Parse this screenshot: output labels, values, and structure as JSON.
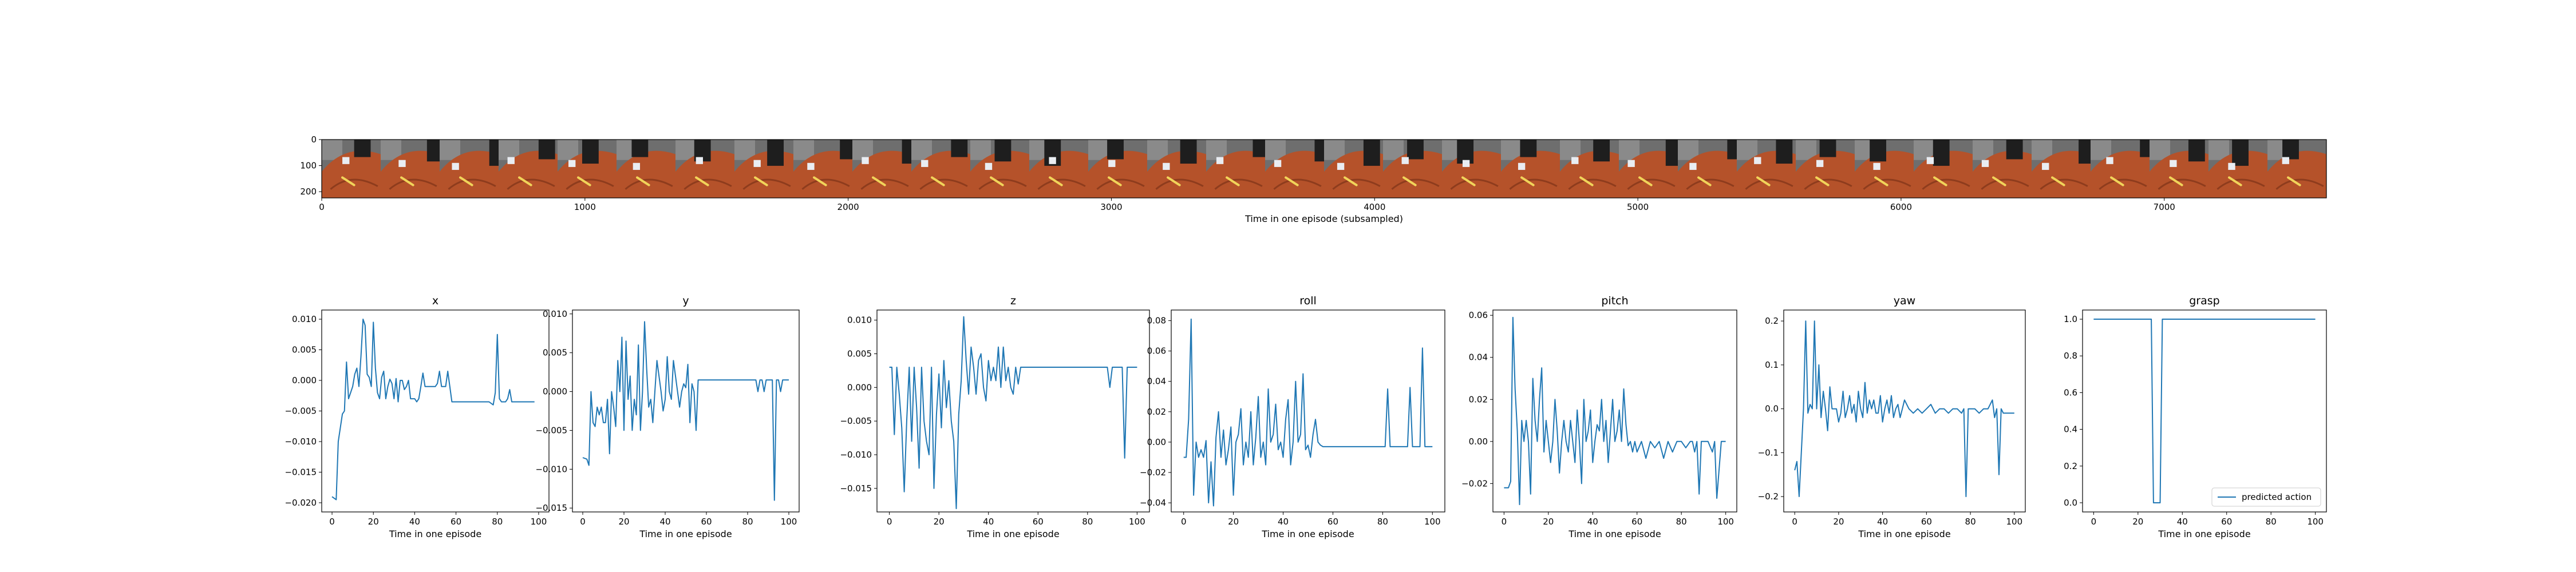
{
  "figure": {
    "filmstrip": {
      "xlabel": "Time in one episode (subsampled)",
      "x_ticks": [
        0,
        1000,
        2000,
        3000,
        4000,
        5000,
        6000,
        7000
      ],
      "y_ticks": [
        0,
        100,
        200
      ],
      "xlim": [
        0,
        7616
      ],
      "ylim": [
        224,
        0
      ],
      "frame_count": 34,
      "frame_width": 224,
      "legend": ""
    }
  },
  "colors": {
    "line": "#1f77b4",
    "frame_background": "#6e6e6e",
    "frame_object": "#b5522a",
    "gripper": "#1e1e1e",
    "marker": "#f1d45a",
    "cube": "#e9edf2"
  },
  "chart_data": [
    {
      "type": "line",
      "title": "x",
      "xlabel": "Time in one episode",
      "ylabel": "",
      "xlim": [
        -5,
        105
      ],
      "ylim": [
        -0.0215,
        0.0115
      ],
      "x_ticks": [
        0,
        20,
        40,
        60,
        80,
        100
      ],
      "y_ticks": [
        -0.02,
        -0.015,
        -0.01,
        -0.005,
        0.0,
        0.005,
        0.01
      ],
      "y_tick_labels": [
        "−0.020",
        "−0.015",
        "−0.010",
        "−0.005",
        "0.000",
        "0.005",
        "0.010"
      ],
      "legend": null,
      "x": [
        0,
        2,
        3,
        5,
        6,
        7,
        8,
        9,
        10,
        11,
        12,
        13,
        14,
        15,
        16,
        17,
        18,
        19,
        20,
        21,
        22,
        23,
        24,
        25,
        26,
        27,
        28,
        29,
        30,
        31,
        32,
        33,
        34,
        35,
        36,
        37,
        38,
        39,
        40,
        41,
        42,
        43,
        44,
        45,
        46,
        47,
        48,
        49,
        50,
        51,
        52,
        53,
        54,
        55,
        56,
        57,
        58,
        60,
        64,
        68,
        72,
        76,
        78,
        79,
        80,
        81,
        82,
        83,
        84,
        85,
        86,
        87,
        88,
        90,
        95,
        98
      ],
      "values": [
        -0.019,
        -0.0195,
        -0.01,
        -0.0055,
        -0.005,
        0.003,
        -0.003,
        -0.002,
        -0.001,
        0.001,
        0.002,
        -0.001,
        0.004,
        0.01,
        0.009,
        0.001,
        0.0005,
        -0.001,
        0.0095,
        0.002,
        -0.002,
        -0.003,
        0.0005,
        0.0015,
        -0.003,
        -0.001,
        0.0002,
        -0.0005,
        -0.003,
        0.0003,
        -0.0035,
        0.0,
        0.0,
        -0.0015,
        -0.001,
        0.0,
        -0.003,
        -0.003,
        -0.003,
        -0.0035,
        -0.003,
        -0.001,
        0.0012,
        -0.001,
        -0.001,
        -0.001,
        -0.001,
        -0.001,
        -0.001,
        -0.0005,
        0.0015,
        -0.001,
        -0.001,
        -0.001,
        0.0015,
        -0.001,
        -0.0035,
        -0.0035,
        -0.0035,
        -0.0035,
        -0.0035,
        -0.0035,
        -0.004,
        -0.002,
        0.0075,
        -0.003,
        -0.0035,
        -0.0035,
        -0.0035,
        -0.003,
        -0.0015,
        -0.0035,
        -0.0035,
        -0.0035,
        -0.0035,
        -0.0035
      ]
    },
    {
      "type": "line",
      "title": "y",
      "xlabel": "Time in one episode",
      "ylabel": "",
      "xlim": [
        -5,
        105
      ],
      "ylim": [
        -0.0155,
        0.0105
      ],
      "x_ticks": [
        0,
        20,
        40,
        60,
        80,
        100
      ],
      "y_ticks": [
        -0.015,
        -0.01,
        -0.005,
        0.0,
        0.005,
        0.01
      ],
      "y_tick_labels": [
        "−0.015",
        "−0.010",
        "−0.005",
        "0.000",
        "0.005",
        "0.010"
      ],
      "legend": null,
      "x": [
        0,
        2,
        3,
        4,
        5,
        6,
        7,
        8,
        9,
        10,
        11,
        12,
        13,
        14,
        15,
        16,
        17,
        18,
        19,
        20,
        21,
        22,
        23,
        24,
        25,
        26,
        27,
        28,
        29,
        30,
        31,
        32,
        33,
        34,
        35,
        36,
        37,
        38,
        39,
        40,
        41,
        42,
        43,
        44,
        45,
        46,
        47,
        48,
        49,
        50,
        51,
        52,
        53,
        54,
        55,
        56,
        57,
        58,
        59,
        60,
        65,
        70,
        75,
        80,
        84,
        85,
        86,
        87,
        88,
        89,
        90,
        91,
        92,
        93,
        94,
        95,
        96,
        97,
        98,
        100
      ],
      "values": [
        -0.0085,
        -0.0087,
        -0.0095,
        0.0,
        -0.004,
        -0.0045,
        -0.002,
        -0.003,
        -0.002,
        -0.004,
        -0.004,
        -0.001,
        -0.008,
        0.0,
        -0.002,
        -0.0045,
        0.004,
        0.0,
        0.007,
        -0.005,
        0.0065,
        -0.001,
        0.002,
        -0.005,
        -0.001,
        -0.003,
        0.006,
        -0.005,
        0.0,
        0.009,
        0.003,
        -0.002,
        -0.001,
        -0.004,
        0.0,
        0.004,
        0.002,
        0.0,
        -0.0025,
        -0.001,
        0.0045,
        0.0,
        -0.001,
        0.004,
        0.002,
        0.0,
        -0.002,
        0.0,
        0.001,
        0.0005,
        0.0035,
        -0.004,
        0.001,
        0.0,
        -0.005,
        0.0015,
        0.0015,
        0.0015,
        0.0015,
        0.0015,
        0.0015,
        0.0015,
        0.0015,
        0.0015,
        0.0015,
        0.0,
        0.0015,
        0.0015,
        0.0,
        0.0015,
        0.0015,
        0.0015,
        0.0015,
        -0.014,
        0.0015,
        0.0015,
        0.0,
        0.0015,
        0.0015,
        0.0015
      ]
    },
    {
      "type": "line",
      "title": "z",
      "xlabel": "Time in one episode",
      "ylabel": "",
      "xlim": [
        -5,
        105
      ],
      "ylim": [
        -0.0185,
        0.0115
      ],
      "x_ticks": [
        0,
        20,
        40,
        60,
        80,
        100
      ],
      "y_ticks": [
        -0.015,
        -0.01,
        -0.005,
        0.0,
        0.005,
        0.01
      ],
      "y_tick_labels": [
        "−0.015",
        "−0.010",
        "−0.005",
        "0.000",
        "0.005",
        "0.010"
      ],
      "legend": null,
      "x": [
        0,
        1,
        2,
        3,
        4,
        5,
        6,
        7,
        8,
        9,
        10,
        11,
        12,
        13,
        14,
        15,
        16,
        17,
        18,
        19,
        20,
        21,
        22,
        23,
        24,
        25,
        26,
        27,
        28,
        29,
        30,
        31,
        32,
        33,
        34,
        35,
        36,
        37,
        38,
        39,
        40,
        41,
        42,
        43,
        44,
        45,
        46,
        47,
        48,
        49,
        50,
        51,
        52,
        53,
        54,
        55,
        56,
        57,
        58,
        59,
        60,
        65,
        70,
        75,
        80,
        85,
        88,
        89,
        90,
        91,
        92,
        93,
        94,
        95,
        96,
        97,
        98,
        100
      ],
      "values": [
        0.003,
        0.003,
        -0.007,
        0.003,
        -0.001,
        -0.006,
        -0.0155,
        -0.005,
        0.003,
        -0.008,
        0.003,
        -0.003,
        -0.012,
        0.003,
        -0.005,
        -0.008,
        -0.01,
        0.003,
        -0.015,
        -0.004,
        0.002,
        -0.006,
        0.004,
        -0.003,
        0.001,
        -0.005,
        -0.008,
        -0.018,
        -0.004,
        0.001,
        0.0105,
        0.004,
        -0.001,
        0.006,
        0.003,
        -0.001,
        0.004,
        0.005,
        0.0,
        -0.002,
        0.004,
        0.001,
        0.003,
        0.001,
        0.006,
        0.0,
        0.006,
        0.001,
        0.003,
        0.0,
        -0.001,
        0.003,
        0.0005,
        0.003,
        0.003,
        0.003,
        0.003,
        0.003,
        0.003,
        0.003,
        0.003,
        0.003,
        0.003,
        0.003,
        0.003,
        0.003,
        0.003,
        0.0,
        0.003,
        0.003,
        0.003,
        0.003,
        0.003,
        -0.0105,
        0.003,
        0.003,
        0.003,
        0.003
      ]
    },
    {
      "type": "line",
      "title": "roll",
      "xlabel": "Time in one episode",
      "ylabel": "",
      "xlim": [
        -5,
        105
      ],
      "ylim": [
        -0.046,
        0.087
      ],
      "x_ticks": [
        0,
        20,
        40,
        60,
        80,
        100
      ],
      "y_ticks": [
        -0.04,
        -0.02,
        0.0,
        0.02,
        0.04,
        0.06,
        0.08
      ],
      "y_tick_labels": [
        "−0.04",
        "−0.02",
        "0.00",
        "0.02",
        "0.04",
        "0.06",
        "0.08"
      ],
      "legend": null,
      "x": [
        0,
        1,
        2,
        3,
        4,
        5,
        6,
        7,
        8,
        9,
        10,
        11,
        12,
        13,
        14,
        15,
        16,
        17,
        18,
        19,
        20,
        21,
        22,
        23,
        24,
        25,
        26,
        27,
        28,
        29,
        30,
        31,
        32,
        33,
        34,
        35,
        36,
        37,
        38,
        39,
        40,
        41,
        42,
        43,
        44,
        45,
        46,
        47,
        48,
        49,
        50,
        51,
        52,
        53,
        54,
        55,
        56,
        60,
        65,
        70,
        75,
        80,
        81,
        82,
        83,
        84,
        85,
        86,
        87,
        88,
        89,
        90,
        91,
        92,
        93,
        94,
        95,
        96,
        97,
        98,
        100
      ],
      "values": [
        -0.01,
        -0.01,
        0.015,
        0.081,
        -0.035,
        0.0,
        -0.01,
        -0.005,
        -0.01,
        0.001,
        -0.04,
        -0.013,
        -0.042,
        0.003,
        0.02,
        -0.01,
        0.008,
        -0.015,
        -0.005,
        0.01,
        -0.035,
        0.0,
        0.005,
        0.022,
        -0.015,
        0.0,
        -0.01,
        0.02,
        -0.015,
        0.003,
        0.03,
        -0.01,
        0.0,
        -0.015,
        0.035,
        0.0,
        0.005,
        0.025,
        -0.005,
        0.0,
        -0.01,
        0.015,
        0.028,
        -0.015,
        0.0,
        0.04,
        0.0,
        0.005,
        0.045,
        -0.005,
        -0.002,
        -0.01,
        0.005,
        0.015,
        0.0,
        -0.002,
        -0.003,
        -0.003,
        -0.003,
        -0.003,
        -0.003,
        -0.003,
        -0.003,
        0.035,
        -0.003,
        -0.003,
        -0.003,
        -0.003,
        -0.003,
        -0.003,
        -0.003,
        -0.003,
        0.036,
        -0.003,
        -0.003,
        -0.003,
        -0.003,
        0.062,
        -0.003,
        -0.003,
        -0.003
      ]
    },
    {
      "type": "line",
      "title": "pitch",
      "xlabel": "Time in one episode",
      "ylabel": "",
      "xlim": [
        -5,
        105
      ],
      "ylim": [
        -0.0335,
        0.0625
      ],
      "x_ticks": [
        0,
        20,
        40,
        60,
        80,
        100
      ],
      "y_ticks": [
        -0.02,
        0.0,
        0.02,
        0.04,
        0.06
      ],
      "y_tick_labels": [
        "−0.02",
        "0.00",
        "0.02",
        "0.04",
        "0.06"
      ],
      "legend": null,
      "x": [
        0,
        2,
        3,
        4,
        5,
        6,
        7,
        8,
        9,
        10,
        11,
        12,
        13,
        14,
        15,
        16,
        17,
        18,
        19,
        20,
        21,
        22,
        23,
        24,
        25,
        26,
        27,
        28,
        29,
        30,
        31,
        32,
        33,
        34,
        35,
        36,
        37,
        38,
        39,
        40,
        41,
        42,
        43,
        44,
        45,
        46,
        47,
        48,
        49,
        50,
        51,
        52,
        53,
        54,
        55,
        56,
        57,
        58,
        59,
        60,
        62,
        64,
        66,
        68,
        70,
        72,
        74,
        76,
        78,
        80,
        82,
        84,
        85,
        86,
        87,
        88,
        89,
        90,
        92,
        94,
        95,
        96,
        98,
        100
      ],
      "values": [
        -0.022,
        -0.022,
        -0.019,
        0.059,
        0.025,
        0.005,
        -0.03,
        0.01,
        0.0,
        0.01,
        0.0,
        -0.025,
        0.03,
        0.01,
        0.0,
        0.02,
        0.035,
        -0.005,
        0.01,
        0.0,
        -0.01,
        0.0,
        0.02,
        0.005,
        -0.015,
        0.0,
        0.01,
        0.0,
        -0.005,
        0.01,
        0.0,
        -0.01,
        0.015,
        0.0,
        -0.02,
        0.02,
        0.0,
        0.005,
        0.015,
        -0.01,
        0.0,
        0.008,
        0.005,
        0.02,
        0.0,
        0.01,
        -0.01,
        0.005,
        0.02,
        0.0,
        0.005,
        0.015,
        0.0,
        0.025,
        0.008,
        -0.002,
        0.0,
        -0.005,
        0.0,
        -0.005,
        0.0,
        -0.008,
        0.0,
        -0.003,
        0.0,
        -0.008,
        0.0,
        -0.005,
        0.0,
        0.0,
        -0.003,
        0.0,
        0.0,
        -0.005,
        0.0,
        -0.025,
        0.0,
        0.0,
        0.0,
        -0.005,
        0.0,
        -0.027,
        0.0,
        0.0
      ]
    },
    {
      "type": "line",
      "title": "yaw",
      "xlabel": "Time in one episode",
      "ylabel": "",
      "xlim": [
        -5,
        105
      ],
      "ylim": [
        -0.235,
        0.225
      ],
      "x_ticks": [
        0,
        20,
        40,
        60,
        80,
        100
      ],
      "y_ticks": [
        -0.2,
        -0.1,
        0.0,
        0.1,
        0.2
      ],
      "y_tick_labels": [
        "−0.2",
        "−0.1",
        "0.0",
        "0.1",
        "0.2"
      ],
      "legend": null,
      "x": [
        0,
        1,
        2,
        3,
        4,
        5,
        6,
        7,
        8,
        9,
        10,
        11,
        12,
        13,
        14,
        15,
        16,
        17,
        18,
        19,
        20,
        21,
        22,
        23,
        24,
        25,
        26,
        27,
        28,
        29,
        30,
        31,
        32,
        33,
        34,
        35,
        36,
        37,
        38,
        39,
        40,
        41,
        42,
        43,
        44,
        45,
        46,
        47,
        48,
        49,
        50,
        52,
        54,
        56,
        58,
        60,
        62,
        64,
        66,
        68,
        70,
        72,
        74,
        76,
        77,
        78,
        79,
        80,
        82,
        84,
        86,
        88,
        90,
        91,
        92,
        93,
        94,
        95,
        96,
        98,
        100
      ],
      "values": [
        -0.14,
        -0.12,
        -0.2,
        -0.1,
        0.0,
        0.2,
        -0.01,
        0.01,
        0.0,
        0.2,
        0.0,
        0.1,
        -0.02,
        0.04,
        0.0,
        -0.05,
        0.05,
        0.0,
        0.0,
        0.0,
        -0.03,
        -0.01,
        0.04,
        -0.02,
        0.0,
        0.03,
        -0.01,
        0.01,
        -0.03,
        0.04,
        0.0,
        -0.02,
        0.06,
        -0.01,
        0.02,
        0.0,
        0.02,
        -0.01,
        -0.01,
        0.03,
        -0.03,
        0.0,
        0.02,
        -0.01,
        0.03,
        -0.02,
        0.0,
        0.01,
        -0.02,
        0.0,
        0.02,
        0.0,
        -0.01,
        0.0,
        -0.01,
        0.0,
        0.01,
        -0.01,
        0.0,
        0.0,
        -0.01,
        0.0,
        0.0,
        -0.01,
        0.0,
        -0.2,
        0.0,
        0.0,
        0.0,
        -0.01,
        0.0,
        0.0,
        0.02,
        -0.02,
        0.0,
        -0.15,
        0.0,
        -0.01,
        -0.01,
        -0.01,
        -0.01
      ]
    },
    {
      "type": "line",
      "title": "grasp",
      "xlabel": "Time in one episode",
      "ylabel": "",
      "xlim": [
        -5,
        105
      ],
      "ylim": [
        -0.05,
        1.05
      ],
      "x_ticks": [
        0,
        20,
        40,
        60,
        80,
        100
      ],
      "y_ticks": [
        0.0,
        0.2,
        0.4,
        0.6,
        0.8,
        1.0
      ],
      "y_tick_labels": [
        "0.0",
        "0.2",
        "0.4",
        "0.6",
        "0.8",
        "1.0"
      ],
      "legend": "predicted action",
      "x": [
        0,
        26,
        27,
        30,
        31,
        100
      ],
      "values": [
        1,
        1,
        0,
        0,
        1,
        1
      ]
    }
  ]
}
